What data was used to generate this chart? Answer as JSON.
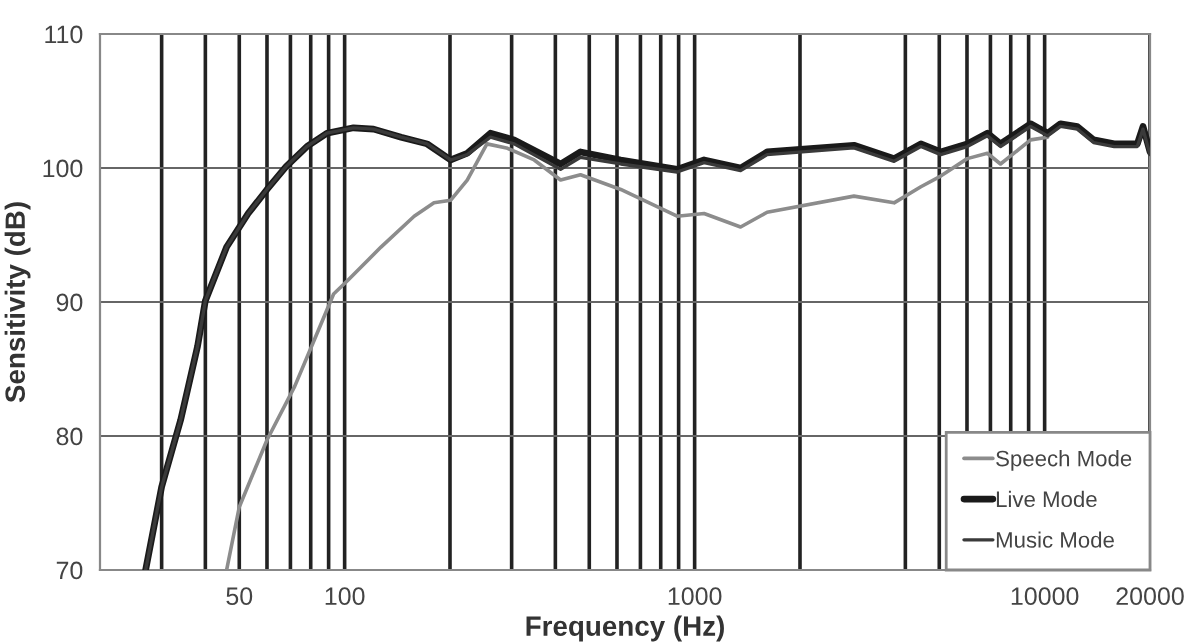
{
  "chart_data": {
    "type": "line",
    "xlabel": "Frequency (Hz)",
    "ylabel": "Sensitivity (dB)",
    "log": "x",
    "xlim": [
      20,
      20000
    ],
    "ylim": [
      70,
      110
    ],
    "xticks": [
      {
        "value": 30,
        "label": null
      },
      {
        "value": 40,
        "label": null
      },
      50,
      {
        "value": 60,
        "label": null
      },
      {
        "value": 70,
        "label": null
      },
      {
        "value": 80,
        "label": null
      },
      {
        "value": 90,
        "label": null
      },
      100,
      {
        "value": 200,
        "label": null
      },
      {
        "value": 300,
        "label": null
      },
      {
        "value": 400,
        "label": null
      },
      {
        "value": 500,
        "label": null
      },
      {
        "value": 600,
        "label": null
      },
      {
        "value": 700,
        "label": null
      },
      {
        "value": 800,
        "label": null
      },
      {
        "value": 900,
        "label": null
      },
      1000,
      {
        "value": 2000,
        "label": null
      },
      {
        "value": 4000,
        "label": null
      },
      {
        "value": 5000,
        "label": null
      },
      {
        "value": 6000,
        "label": null
      },
      {
        "value": 7000,
        "label": null
      },
      {
        "value": 8000,
        "label": null
      },
      {
        "value": 9000,
        "label": null
      },
      10000,
      20000
    ],
    "yticks": [
      70,
      80,
      90,
      100,
      110
    ],
    "grid": true,
    "legend": "bottom right",
    "marker": "none",
    "line_style": "solid",
    "series": [
      {
        "name": "Speech Mode",
        "color": "#8c8c8c",
        "x": [
          46,
          50,
          60,
          72,
          82,
          93,
          102,
          127,
          158,
          180,
          201,
          224,
          255,
          290,
          348,
          414,
          472,
          615,
          891,
          1064,
          1353,
          1611,
          2852,
          3714,
          4430,
          5047,
          6010,
          6860,
          7480,
          9120,
          10200
        ],
        "values": [
          70,
          74.7,
          79.7,
          83.7,
          87.2,
          90.6,
          91.6,
          94.1,
          96.4,
          97.4,
          97.6,
          99.1,
          101.8,
          101.5,
          100.6,
          99.1,
          99.5,
          98.4,
          96.4,
          96.6,
          95.6,
          96.7,
          97.9,
          97.4,
          98.6,
          99.4,
          100.7,
          101.1,
          100.3,
          102.1,
          102.3
        ]
      },
      {
        "name": "Live Mode",
        "color": "#1a1a1a",
        "x": [
          27,
          30,
          34,
          38,
          40,
          46,
          53,
          60,
          68,
          78,
          89,
          106,
          121,
          145,
          172,
          201,
          224,
          261,
          305,
          414,
          472,
          615,
          891,
          1064,
          1353,
          1611,
          2852,
          3714,
          4430,
          5047,
          6010,
          6860,
          7480,
          9120,
          10200,
          11100,
          12400,
          13800,
          15800,
          18400,
          19100,
          20000
        ],
        "values": [
          70,
          76.2,
          81.2,
          86.7,
          90.1,
          94.1,
          96.6,
          98.4,
          100.1,
          101.6,
          102.6,
          103,
          102.9,
          102.3,
          101.8,
          100.6,
          101.1,
          102.6,
          102.1,
          100.3,
          101.2,
          100.6,
          99.9,
          100.6,
          100,
          101.2,
          101.7,
          100.7,
          101.8,
          101.2,
          101.8,
          102.6,
          101.8,
          103.3,
          102.6,
          103.3,
          103.1,
          102.1,
          101.8,
          101.8,
          103.1,
          101.2
        ]
      },
      {
        "name": "Music Mode",
        "color": "#3a3a3a",
        "x": [
          27,
          30,
          34,
          38,
          40,
          46,
          53,
          60,
          68,
          78,
          89,
          106,
          121,
          145,
          172,
          201,
          224,
          261,
          305,
          414,
          472,
          615,
          891,
          1064,
          1353,
          1611,
          2852,
          3714,
          4430,
          5047,
          6010,
          6860,
          7480,
          9120,
          10200,
          11100,
          12400,
          13800,
          15800,
          18400,
          19100,
          20000
        ],
        "values": [
          70,
          76.2,
          81.2,
          86.7,
          90.1,
          94.1,
          96.6,
          98.4,
          100.1,
          101.6,
          102.6,
          103,
          102.9,
          102.3,
          101.8,
          100.6,
          101,
          102.3,
          101.8,
          99.9,
          100.8,
          100.3,
          99.7,
          100.4,
          99.8,
          101,
          101.5,
          100.5,
          101.6,
          101,
          101.6,
          102.4,
          101.6,
          103.1,
          102.4,
          103.1,
          102.9,
          101.9,
          101.6,
          101.6,
          102.9,
          101
        ]
      }
    ]
  }
}
